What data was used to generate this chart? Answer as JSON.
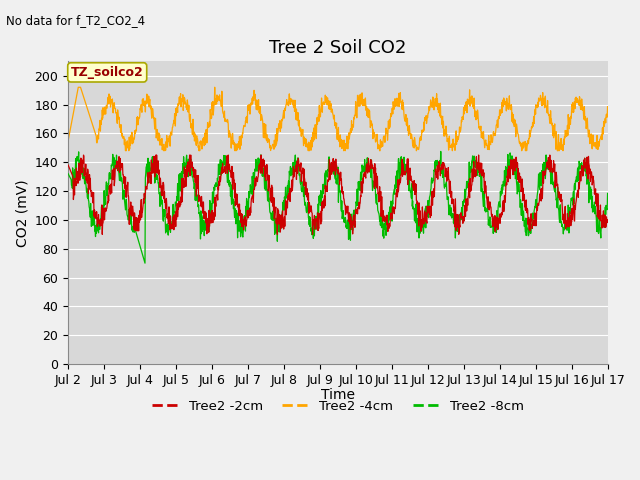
{
  "title": "Tree 2 Soil CO2",
  "subtitle": "No data for f_T2_CO2_4",
  "ylabel": "CO2 (mV)",
  "xlabel": "Time",
  "legend_label": "TZ_soilco2",
  "ylim": [
    0,
    210
  ],
  "yticks": [
    0,
    20,
    40,
    60,
    80,
    100,
    120,
    140,
    160,
    180,
    200
  ],
  "xtick_labels": [
    "Jul 2",
    "Jul 3",
    "Jul 4",
    "Jul 5",
    "Jul 6",
    "Jul 7",
    "Jul 8",
    "Jul 9",
    "Jul 10",
    "Jul 11",
    "Jul 12",
    "Jul 13",
    "Jul 14",
    "Jul 15",
    "Jul 16",
    "Jul 17"
  ],
  "series": {
    "2cm": {
      "color": "#cc0000",
      "label": "Tree2 -2cm"
    },
    "4cm": {
      "color": "#ffa500",
      "label": "Tree2 -4cm"
    },
    "8cm": {
      "color": "#00bb00",
      "label": "Tree2 -8cm"
    }
  },
  "fig_bg": "#f0f0f0",
  "plot_bg": "#d8d8d8",
  "grid_color": "#ffffff",
  "title_fontsize": 13,
  "axis_label_fontsize": 10,
  "tick_fontsize": 9
}
